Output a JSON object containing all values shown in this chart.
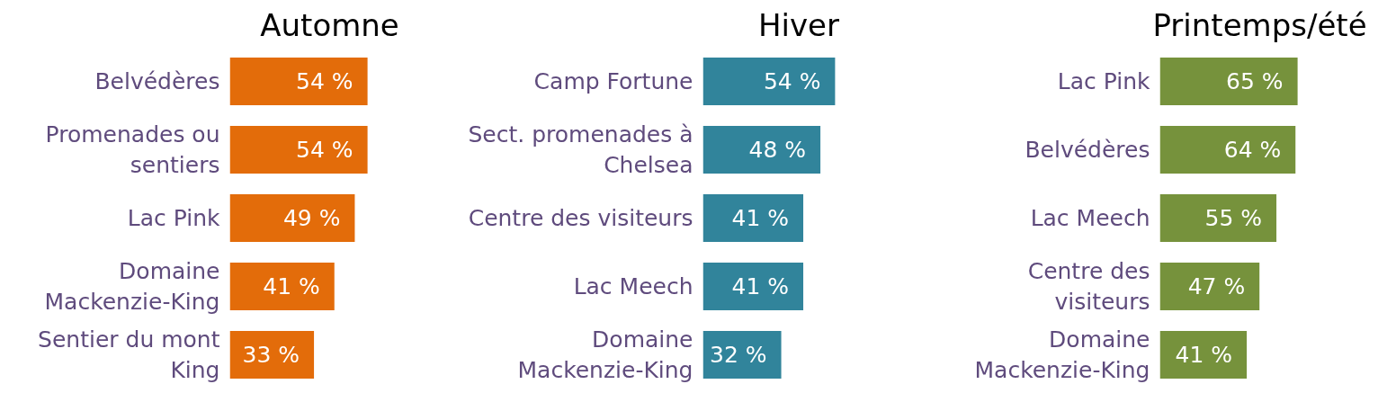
{
  "chart_data": [
    {
      "type": "bar",
      "orientation": "horizontal",
      "title": "Automne",
      "categories": [
        "Belvédères",
        "Promenades ou\nsentiers",
        "Lac Pink",
        "Domaine\nMackenzie-King",
        "Sentier du mont\nKing"
      ],
      "series": [
        {
          "color": "#e36c0a",
          "values": [
            54,
            54,
            49,
            41,
            33
          ],
          "value_labels": [
            "54 %",
            "54 %",
            "49 %",
            "41 %",
            "33 %"
          ]
        }
      ]
    },
    {
      "type": "bar",
      "orientation": "horizontal",
      "title": "Hiver",
      "categories": [
        "Camp Fortune",
        "Sect. promenades à\nChelsea",
        "Centre des visiteurs",
        "Lac Meech",
        "Domaine\nMackenzie-King"
      ],
      "series": [
        {
          "color": "#31849b",
          "values": [
            54,
            48,
            41,
            41,
            32
          ],
          "value_labels": [
            "54 %",
            "48 %",
            "41 %",
            "41 %",
            "32 %"
          ]
        }
      ]
    },
    {
      "type": "bar",
      "orientation": "horizontal",
      "title": "Printemps/été",
      "categories": [
        "Lac Pink",
        "Belvédères",
        "Lac Meech",
        "Centre des\nvisiteurs",
        "Domaine\nMackenzie-King"
      ],
      "series": [
        {
          "color": "#76923c",
          "values": [
            65,
            64,
            55,
            47,
            41
          ],
          "value_labels": [
            "65 %",
            "64 %",
            "55 %",
            "47 %",
            "41 %"
          ]
        }
      ]
    }
  ]
}
